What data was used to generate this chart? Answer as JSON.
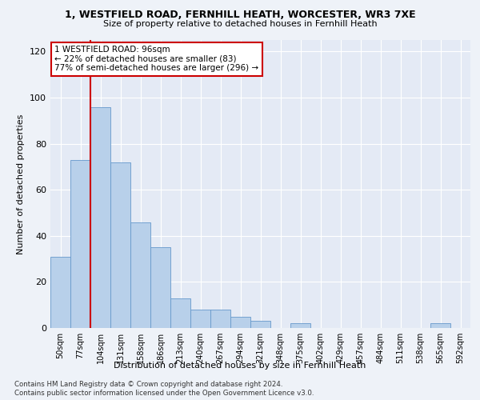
{
  "title1": "1, WESTFIELD ROAD, FERNHILL HEATH, WORCESTER, WR3 7XE",
  "title2": "Size of property relative to detached houses in Fernhill Heath",
  "xlabel": "Distribution of detached houses by size in Fernhill Heath",
  "ylabel": "Number of detached properties",
  "categories": [
    "50sqm",
    "77sqm",
    "104sqm",
    "131sqm",
    "158sqm",
    "186sqm",
    "213sqm",
    "240sqm",
    "267sqm",
    "294sqm",
    "321sqm",
    "348sqm",
    "375sqm",
    "402sqm",
    "429sqm",
    "457sqm",
    "484sqm",
    "511sqm",
    "538sqm",
    "565sqm",
    "592sqm"
  ],
  "values": [
    31,
    73,
    96,
    72,
    46,
    35,
    13,
    8,
    8,
    5,
    3,
    0,
    2,
    0,
    0,
    0,
    0,
    0,
    0,
    2,
    0
  ],
  "bar_color": "#b8d0ea",
  "bar_edge_color": "#6699cc",
  "vline_color": "#cc0000",
  "annotation_text": "1 WESTFIELD ROAD: 96sqm\n← 22% of detached houses are smaller (83)\n77% of semi-detached houses are larger (296) →",
  "annotation_box_color": "#ffffff",
  "annotation_box_edge": "#cc0000",
  "ylim": [
    0,
    125
  ],
  "yticks": [
    0,
    20,
    40,
    60,
    80,
    100,
    120
  ],
  "footer1": "Contains HM Land Registry data © Crown copyright and database right 2024.",
  "footer2": "Contains public sector information licensed under the Open Government Licence v3.0.",
  "background_color": "#eef2f8",
  "plot_bg_color": "#e4eaf5",
  "fig_width": 6.0,
  "fig_height": 5.0
}
